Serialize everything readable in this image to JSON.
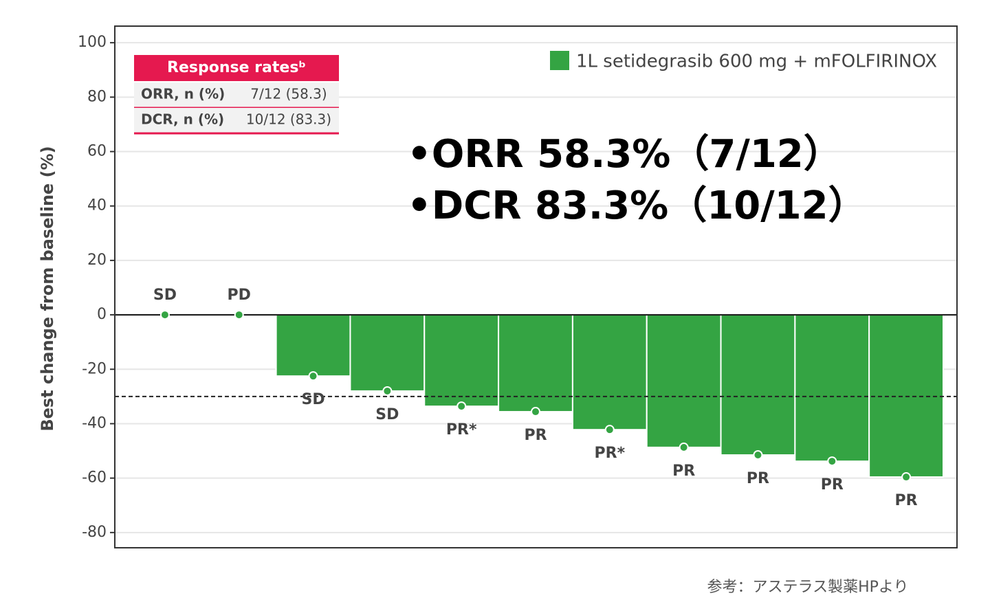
{
  "chart_data": {
    "type": "bar",
    "ylabel": "Best change from baseline (%)",
    "categories": [
      "SD",
      "PD",
      "SD",
      "SD",
      "PR*",
      "PR",
      "PR*",
      "PR",
      "PR",
      "PR",
      "PR"
    ],
    "series": [
      {
        "name": "1L setidegrasib 600 mg + mFOLFIRINOX",
        "color": "#34a443",
        "values": [
          0,
          0,
          -22.5,
          -28,
          -33.6,
          -35.6,
          -42.2,
          -48.7,
          -51.5,
          -53.8,
          -59.6
        ]
      }
    ],
    "ylim": [
      -85.6,
      106.1
    ],
    "yticks": [
      -80,
      -60,
      -40,
      -20,
      0,
      20,
      40,
      60,
      80,
      100
    ],
    "grid": true,
    "threshold": -30,
    "legend": "top-right",
    "table": {
      "header": "Response ratesᵇ",
      "rows": [
        [
          "ORR, n (%)",
          "7/12 (58.3)"
        ],
        [
          "DCR, n (%)",
          "10/12 (83.3)"
        ]
      ]
    },
    "annotations": [
      "•ORR 58.3%（7/12）",
      "•DCR 83.3%（10/12）"
    ]
  },
  "footer": "参考：アステラス製薬HPより"
}
